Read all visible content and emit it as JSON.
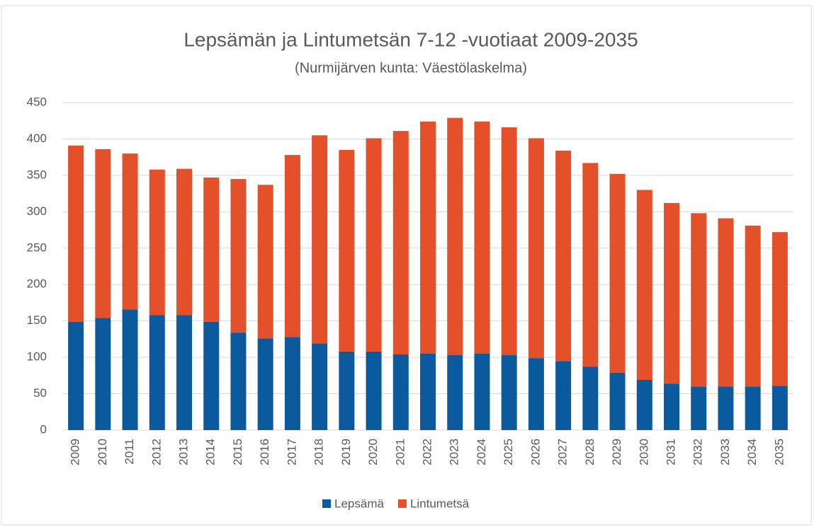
{
  "chart_data": {
    "type": "stacked_bar",
    "title": "Lepsämän ja Lintumetsän 7-12 -vuotiaat 2009-2035",
    "subtitle": "(Nurmijärven kunta: Väestölaskelma)",
    "categories": [
      "2009",
      "2010",
      "2011",
      "2012",
      "2013",
      "2014",
      "2015",
      "2016",
      "2017",
      "2018",
      "2019",
      "2020",
      "2021",
      "2022",
      "2023",
      "2024",
      "2025",
      "2026",
      "2027",
      "2028",
      "2029",
      "2030",
      "2031",
      "2032",
      "2033",
      "2034",
      "2035"
    ],
    "series": [
      {
        "name": "Lepsämä",
        "color": "#0b5a9e",
        "values": [
          149,
          154,
          166,
          158,
          158,
          149,
          134,
          126,
          128,
          119,
          108,
          108,
          104,
          105,
          103,
          105,
          103,
          99,
          95,
          87,
          79,
          69,
          64,
          60,
          60,
          60,
          61
        ]
      },
      {
        "name": "Lintumetsä",
        "color": "#e4502a",
        "values": [
          242,
          232,
          214,
          200,
          201,
          198,
          211,
          211,
          250,
          286,
          277,
          293,
          307,
          319,
          326,
          319,
          313,
          302,
          289,
          280,
          273,
          261,
          248,
          238,
          231,
          221,
          211
        ]
      }
    ],
    "ylim": [
      0,
      450
    ],
    "yticks": [
      0,
      50,
      100,
      150,
      200,
      250,
      300,
      350,
      400,
      450
    ],
    "grid": true,
    "legend": "bottom"
  }
}
